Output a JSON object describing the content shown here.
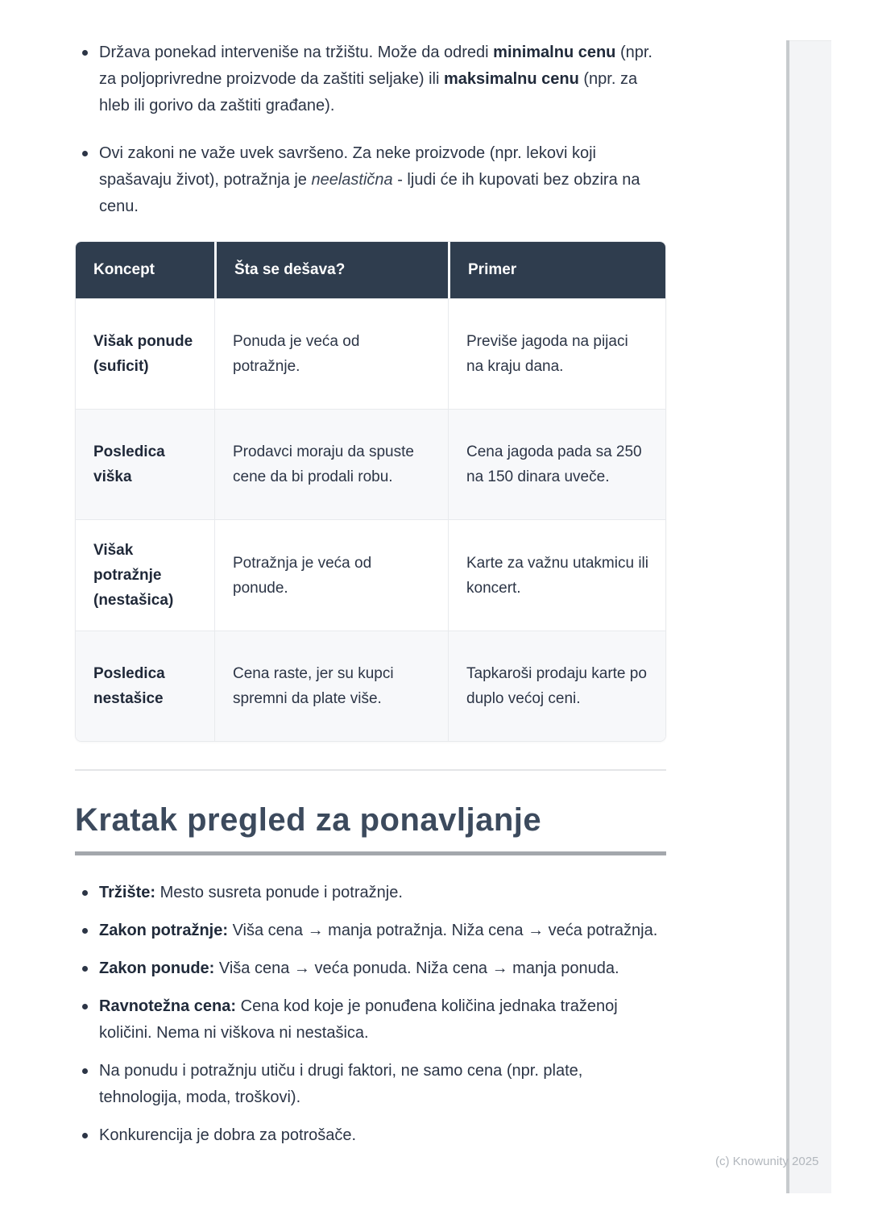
{
  "page": {
    "copyright": "(c) Knowunity 2025"
  },
  "colors": {
    "table_header_bg": "#2f3d4e",
    "table_alt_row_bg": "#f7f8fa",
    "body_text": "#2c3546",
    "heading_text": "#3c4a5d",
    "underline_gray": "#a3a7ac",
    "watermark_gray": "#b2b7bd"
  },
  "intro_bullets": [
    {
      "segments": [
        {
          "t": "Država ponekad interveniše na tržištu. Može da odredi "
        },
        {
          "t": "minimalnu cenu",
          "b": true
        },
        {
          "t": " (npr. za poljoprivredne proizvode da zaštiti seljake) ili "
        },
        {
          "t": "maksimalnu cenu",
          "b": true
        },
        {
          "t": " (npr. za hleb ili gorivo da zaštiti građane)."
        }
      ]
    },
    {
      "segments": [
        {
          "t": "Ovi zakoni ne važe uvek savršeno. Za neke proizvode (npr. lekovi koji spašavaju život), potražnja je "
        },
        {
          "t": "neelastična",
          "i": true
        },
        {
          "t": " - ljudi će ih kupovati bez obzira na cenu."
        }
      ]
    }
  ],
  "table": {
    "headers": [
      "Koncept",
      "Šta se dešava?",
      "Primer"
    ],
    "rows": [
      {
        "concept": "Višak ponude (suficit)",
        "what": "Ponuda je veća od potražnje.",
        "example": "Previše jagoda na pijaci na kraju dana."
      },
      {
        "concept": "Posledica viška",
        "what": "Prodavci moraju da spuste cene da bi prodali robu.",
        "example": "Cena jagoda pada sa 250 na 150 dinara uveče."
      },
      {
        "concept": "Višak potražnje (nestašica)",
        "what": "Potražnja je veća od ponude.",
        "example": "Karte za važnu utakmicu ili koncert."
      },
      {
        "concept": "Posledica nestašice",
        "what": "Cena raste, jer su kupci spremni da plate više.",
        "example": "Tapkaroši prodaju karte po duplo većoj ceni."
      }
    ]
  },
  "section": {
    "title": "Kratak pregled za ponavljanje"
  },
  "summary_bullets": [
    {
      "segments": [
        {
          "t": "Tržište:",
          "b": true
        },
        {
          "t": " Mesto susreta ponude i potražnje."
        }
      ]
    },
    {
      "segments": [
        {
          "t": "Zakon potražnje:",
          "b": true
        },
        {
          "t": " Viša cena → manja potražnja. Niža cena → veća potražnja."
        }
      ]
    },
    {
      "segments": [
        {
          "t": "Zakon ponude:",
          "b": true
        },
        {
          "t": " Viša cena → veća ponuda. Niža cena → manja ponuda."
        }
      ]
    },
    {
      "segments": [
        {
          "t": "Ravnotežna cena:",
          "b": true
        },
        {
          "t": " Cena kod koje je ponuđena količina jednaka traženoj količini. Nema ni viškova ni nestašica."
        }
      ]
    },
    {
      "segments": [
        {
          "t": "Na ponudu i potražnju utiču i drugi faktori, ne samo cena (npr. plate, tehnologija, moda, troškovi)."
        }
      ]
    },
    {
      "segments": [
        {
          "t": "Konkurencija je dobra za potrošače."
        }
      ]
    }
  ]
}
